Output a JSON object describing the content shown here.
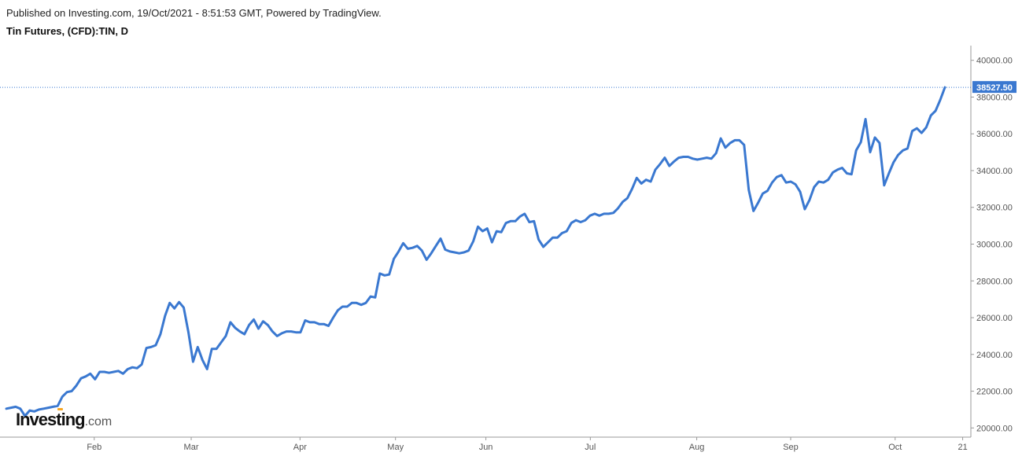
{
  "header": {
    "published": "Published on Investing.com, 19/Oct/2021 - 8:51:53 GMT, Powered by TradingView.",
    "symbol": "Tin Futures, (CFD):TIN, D"
  },
  "logo": {
    "main": "Investing",
    "suffix": ".com"
  },
  "colors": {
    "line": "#3a78d0",
    "last_price_bg": "#3a78d0",
    "price_line": "#3a78d0"
  },
  "chart_data": {
    "type": "line",
    "title": "Tin Futures, (CFD):TIN, D",
    "x_tick_labels": [
      "Feb",
      "Mar",
      "Apr",
      "May",
      "Jun",
      "Jul",
      "Aug",
      "Sep",
      "Oct",
      "21"
    ],
    "y_tick_labels": [
      "20000.00",
      "22000.00",
      "24000.00",
      "26000.00",
      "28000.00",
      "30000.00",
      "32000.00",
      "34000.00",
      "36000.00",
      "38000.00",
      "40000.00"
    ],
    "ylim": [
      19500,
      40800
    ],
    "last_price": "38527.50",
    "grid": false,
    "series": [
      {
        "values": [
          21050,
          21100,
          21150,
          21050,
          20650,
          20950,
          20900,
          21000,
          21050,
          21100,
          21150,
          21200,
          21700,
          21950,
          22000,
          22300,
          22700,
          22800,
          22950,
          22650,
          23050,
          23050,
          23000,
          23050,
          23100,
          22950,
          23200,
          23300,
          23250,
          23450,
          24350,
          24400,
          24500,
          25100,
          26100,
          26800,
          26500,
          26850,
          26550,
          25200,
          23600,
          24400,
          23700,
          23200,
          24300,
          24300,
          24650,
          25000,
          25750,
          25450,
          25250,
          25100,
          25600,
          25900,
          25400,
          25800,
          25600,
          25250,
          25000,
          25150,
          25250,
          25250,
          25200,
          25200,
          25850,
          25750,
          25750,
          25650,
          25650,
          25550,
          26000,
          26400,
          26600,
          26600,
          26800,
          26800,
          26700,
          26800,
          27150,
          27100,
          28400,
          28300,
          28350,
          29200,
          29600,
          30050,
          29750,
          29800,
          29900,
          29650,
          29150,
          29500,
          29900,
          30300,
          29700,
          29600,
          29550,
          29500,
          29550,
          29650,
          30150,
          30950,
          30700,
          30850,
          30100,
          30700,
          30650,
          31150,
          31250,
          31250,
          31500,
          31650,
          31200,
          31250,
          30250,
          29850,
          30100,
          30350,
          30350,
          30600,
          30700,
          31150,
          31300,
          31200,
          31300,
          31550,
          31650,
          31550,
          31650,
          31650,
          31700,
          31950,
          32300,
          32500,
          33000,
          33600,
          33300,
          33500,
          33400,
          34050,
          34350,
          34700,
          34250,
          34500,
          34700,
          34750,
          34750,
          34650,
          34600,
          34650,
          34700,
          34650,
          34950,
          35750,
          35250,
          35500,
          35650,
          35650,
          35400,
          32950,
          31800,
          32250,
          32750,
          32900,
          33350,
          33650,
          33750,
          33350,
          33400,
          33250,
          32850,
          31900,
          32400,
          33100,
          33400,
          33350,
          33500,
          33900,
          34050,
          34150,
          33850,
          33800,
          35100,
          35550,
          36800,
          35000,
          35800,
          35500,
          33200,
          33850,
          34450,
          34850,
          35100,
          35200,
          36150,
          36300,
          36050,
          36350,
          37000,
          37250,
          37850,
          38527.5
        ]
      }
    ]
  }
}
